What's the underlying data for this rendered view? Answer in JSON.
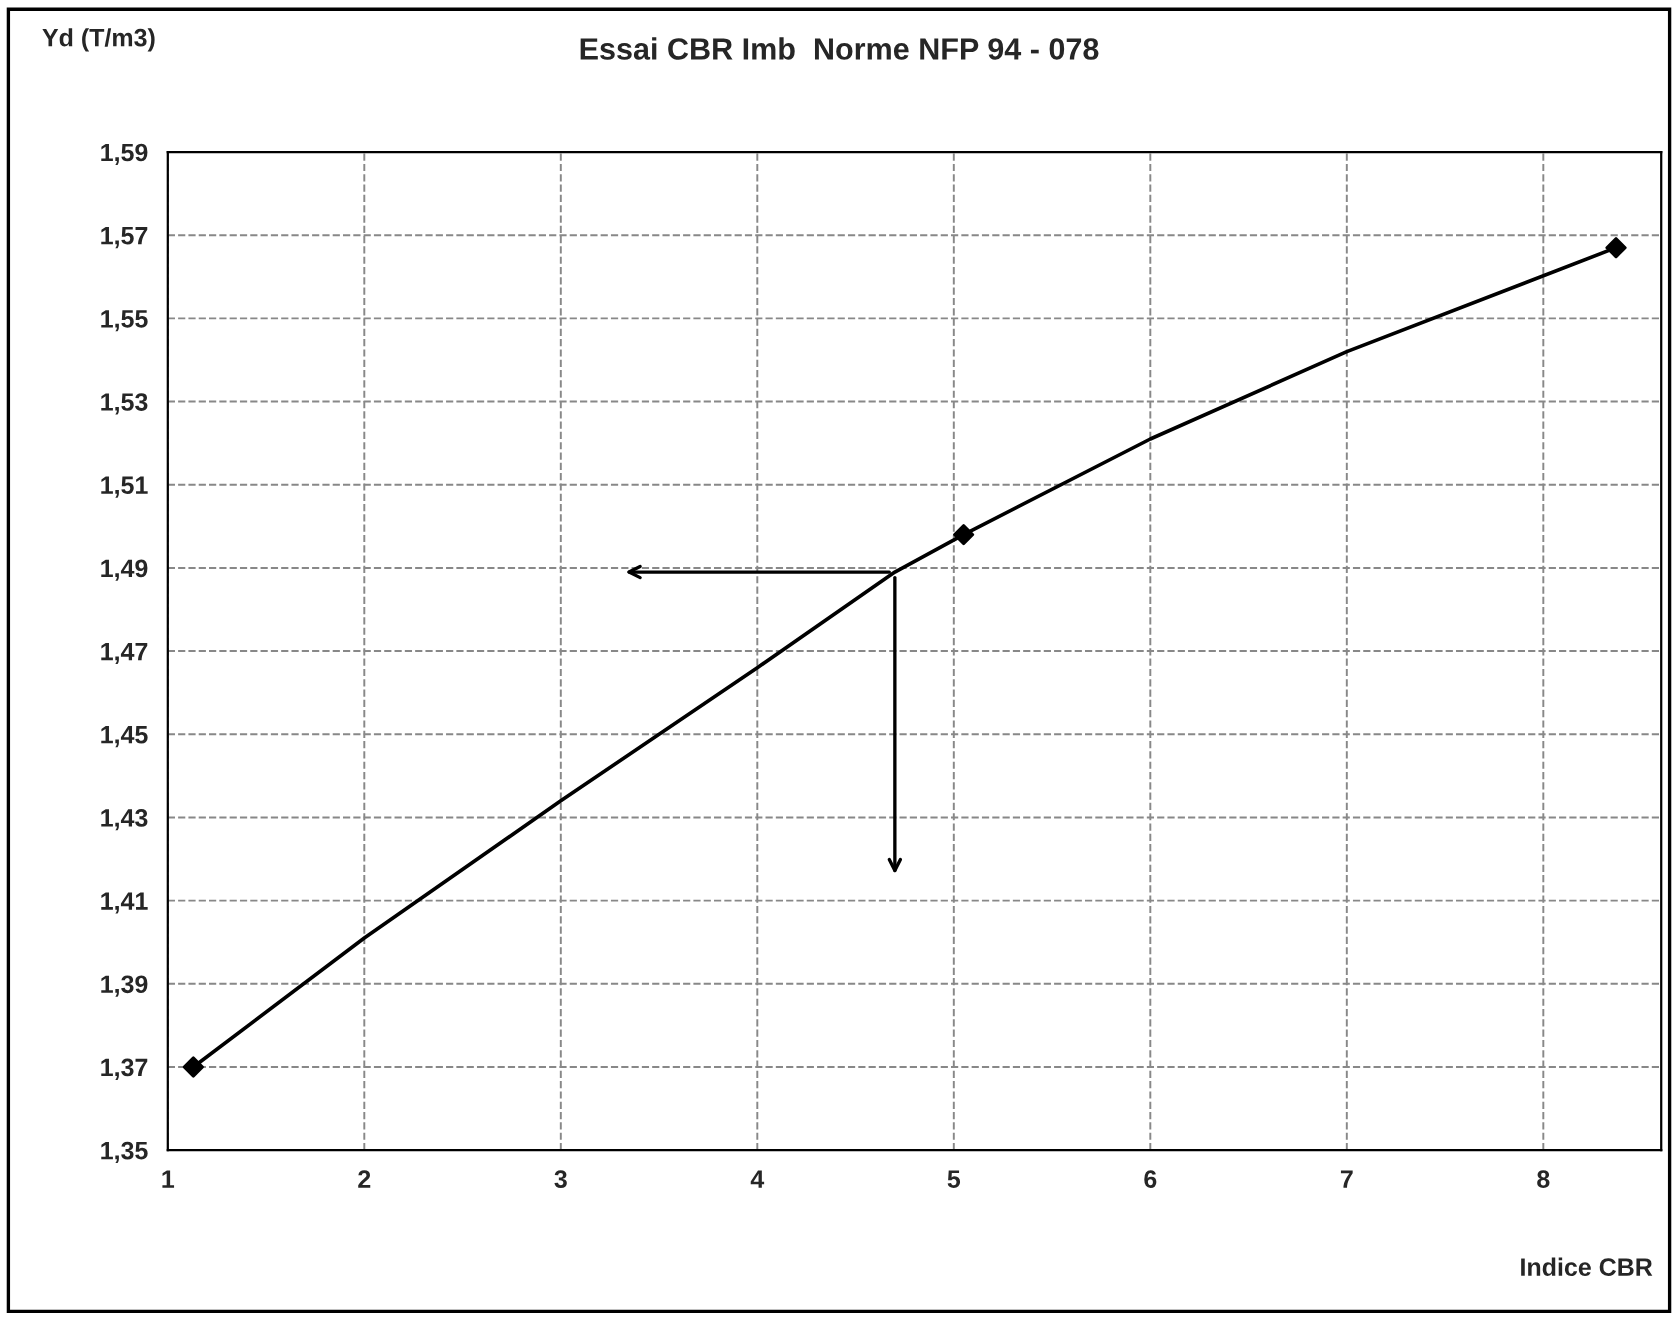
{
  "chart_data": {
    "type": "line",
    "title": "Essai CBR Imb  Norme NFP 94 - 078",
    "xlabel": "Indice CBR",
    "ylabel": "Yd (T/m3)",
    "series": [
      {
        "color": "#000000",
        "marker": "none",
        "x": [
          1.13,
          2,
          3,
          4,
          4.7,
          5.05,
          6,
          7,
          8.37
        ],
        "values": [
          1.37,
          1.401,
          1.434,
          1.466,
          1.489,
          1.498,
          1.521,
          1.542,
          1.567
        ]
      },
      {
        "type": "scatter",
        "color": "#000000",
        "marker": "diamond",
        "x": [
          1.13,
          5.05,
          8.37
        ],
        "values": [
          1.37,
          1.498,
          1.567
        ]
      }
    ],
    "xlim": [
      1,
      8.6
    ],
    "xticks": [
      1,
      2,
      3,
      4,
      5,
      6,
      7,
      8
    ],
    "ylim": [
      1.35,
      1.59
    ],
    "yticks": [
      {
        "value": 1.35,
        "label": "1,35"
      },
      {
        "value": 1.37,
        "label": "1,37"
      },
      {
        "value": 1.39,
        "label": "1,39"
      },
      {
        "value": 1.41,
        "label": "1,41"
      },
      {
        "value": 1.43,
        "label": "1,43"
      },
      {
        "value": 1.45,
        "label": "1,45"
      },
      {
        "value": 1.47,
        "label": "1,47"
      },
      {
        "value": 1.49,
        "label": "1,49"
      },
      {
        "value": 1.51,
        "label": "1,51"
      },
      {
        "value": 1.53,
        "label": "1,53"
      },
      {
        "value": 1.55,
        "label": "1,55"
      },
      {
        "value": 1.57,
        "label": "1,57"
      },
      {
        "value": 1.59,
        "label": "1,59"
      }
    ],
    "grid": true,
    "legend": false
  }
}
